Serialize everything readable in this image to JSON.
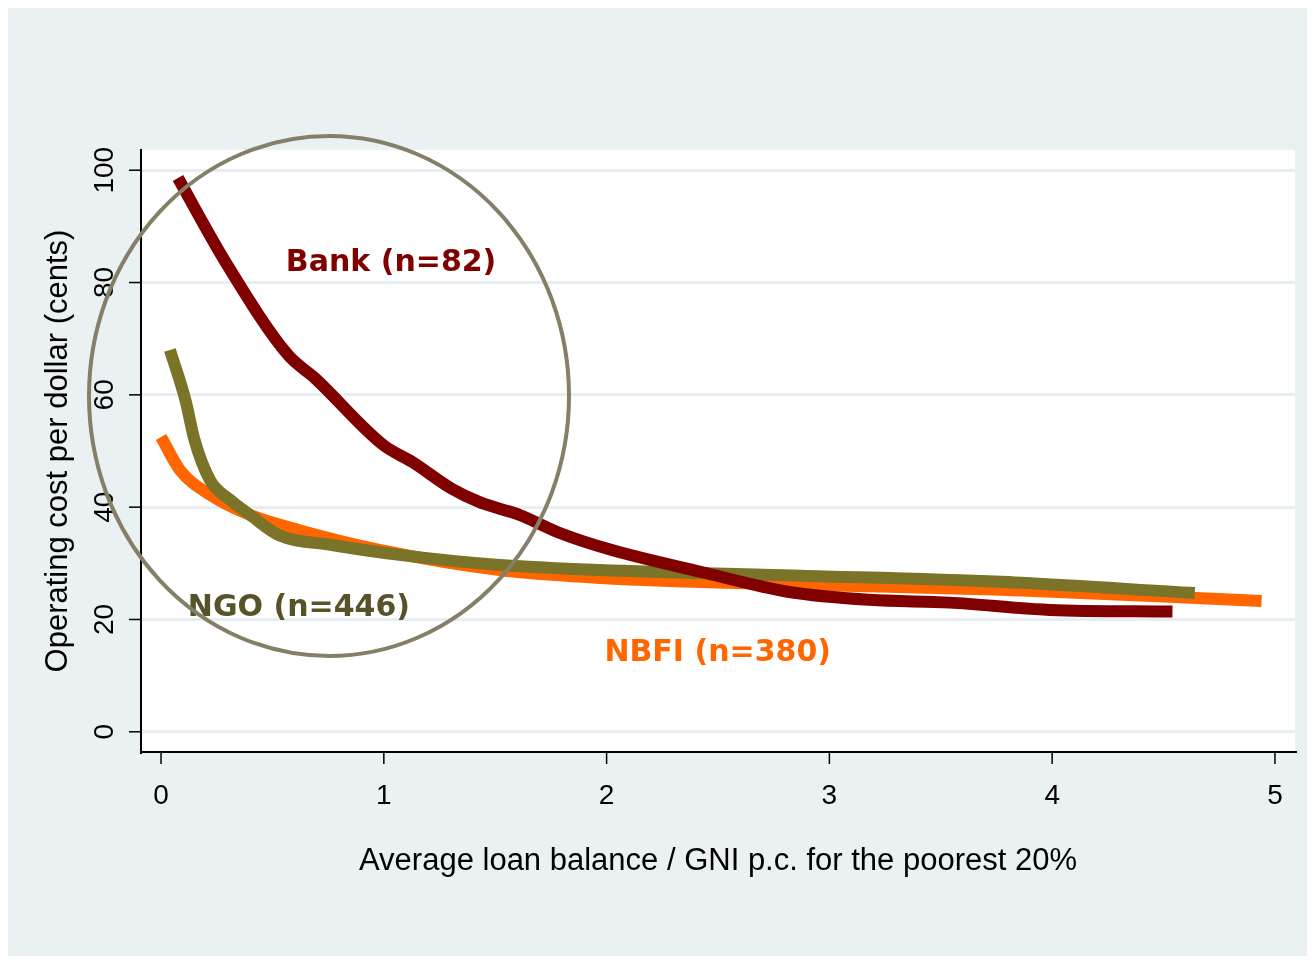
{
  "chart_data": {
    "type": "line",
    "xlabel": "Average loan balance / GNI p.c. for the poorest 20%",
    "ylabel": "Operating cost per dollar (cents)",
    "xlim": [
      -0.09,
      5.09
    ],
    "xticks": [
      0,
      1,
      2,
      3,
      4,
      5
    ],
    "ylim": [
      -3.6,
      103.6
    ],
    "yticks": [
      0,
      20,
      40,
      60,
      80,
      100
    ],
    "grid": "y",
    "legend": false,
    "marker": "none",
    "line_style": "solid",
    "series": [
      {
        "name": "Bank (n=82)",
        "color": "#800000",
        "x": [
          0.076,
          0.29,
          0.57,
          0.69,
          1.0,
          1.13,
          1.3,
          1.43,
          1.61,
          1.79,
          2.02,
          2.42,
          2.82,
          3.18,
          3.54,
          3.99,
          4.54
        ],
        "values": [
          98.6,
          83.6,
          67.1,
          63,
          51,
          48,
          43.4,
          40.9,
          38.6,
          35.4,
          32.4,
          28.5,
          24.9,
          23.5,
          23,
          21.7,
          21.4
        ]
      },
      {
        "name": "NGO (n=446)",
        "color": "#7a7328",
        "x": [
          0.04,
          0.11,
          0.15,
          0.22,
          0.31,
          0.4,
          0.53,
          0.76,
          1.07,
          1.52,
          1.97,
          2.87,
          3.77,
          4.64
        ],
        "values": [
          68,
          59,
          52,
          44.8,
          41.3,
          38.6,
          35,
          33.3,
          31.5,
          29.7,
          28.8,
          27.8,
          26.7,
          24.7
        ]
      },
      {
        "name": "NBFI (n=380)",
        "color": "#ff6600",
        "x": [
          0,
          0.085,
          0.22,
          0.4,
          0.62,
          0.98,
          1.52,
          1.97,
          2.87,
          3.77,
          4.94
        ],
        "values": [
          52.5,
          46.6,
          42.2,
          38.6,
          35.9,
          32.4,
          28.8,
          27.4,
          26.2,
          25.3,
          23.3
        ]
      }
    ]
  }
}
